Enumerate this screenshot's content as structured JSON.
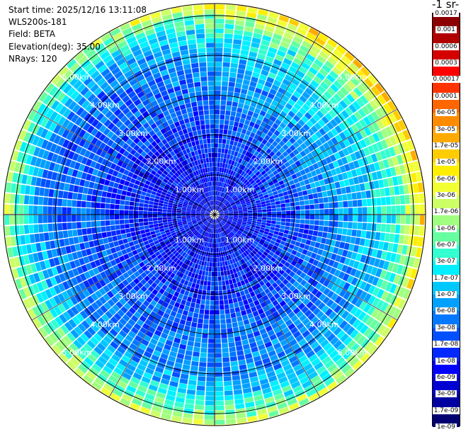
{
  "info": {
    "start_time": "Start time: 2025/12/16 13:11:08",
    "instrument": "WLS200s-181",
    "field": "Field: BETA",
    "elevation": "Elevation(deg): 35.00",
    "nrays": "NRays: 120"
  },
  "colorbar": {
    "title": "-1 sr-",
    "colors": [
      "#8b0000",
      "#b00000",
      "#d40000",
      "#ff0000",
      "#ff3300",
      "#ff6600",
      "#ff8c00",
      "#ffaa00",
      "#ffcc00",
      "#ffee00",
      "#f2ff33",
      "#ccff66",
      "#a0ff80",
      "#66ffa0",
      "#33ffd0",
      "#00f0ff",
      "#00c8ff",
      "#00a0ff",
      "#0078ff",
      "#0050ff",
      "#0028ff",
      "#0000ff",
      "#0000d0",
      "#0000a0",
      "#000070"
    ],
    "labels": [
      "0.0017",
      "0.001",
      "0.0006",
      "0.0003",
      "0.00017",
      "0.0001",
      "6e-05",
      "3e-05",
      "1.7e-05",
      "1e-05",
      "6e-06",
      "3e-06",
      "1.7e-06",
      "1e-06",
      "6e-07",
      "3e-07",
      "1.7e-07",
      "1e-07",
      "6e-08",
      "3e-08",
      "1.7e-08",
      "1e-08",
      "6e-09",
      "3e-09",
      "1.7e-09",
      "1e-09"
    ]
  },
  "chart_data": {
    "type": "heatmap",
    "projection": "polar-ppi",
    "field": "BETA",
    "elevation_deg": 35.0,
    "nrays": 120,
    "max_range_km": 5.3,
    "range_ring_labels": [
      "1.00km",
      "2.00km",
      "3.00km",
      "4.00km",
      "5.00km"
    ],
    "range_rings_km": [
      1,
      2,
      3,
      4,
      5
    ],
    "grid": true,
    "colorscale": "log",
    "value_range": [
      1e-09,
      0.0017
    ],
    "radial_profile": [
      {
        "range_km": 0.5,
        "beta": 6e-09
      },
      {
        "range_km": 1.0,
        "beta": 8e-09
      },
      {
        "range_km": 2.0,
        "beta": 1.2e-08
      },
      {
        "range_km": 3.0,
        "beta": 3e-08
      },
      {
        "range_km": 4.0,
        "beta": 6e-08
      },
      {
        "range_km": 4.6,
        "beta": 2e-07
      },
      {
        "range_km": 5.0,
        "beta": 1e-06
      },
      {
        "range_km": 5.3,
        "beta": 5e-06
      }
    ]
  }
}
